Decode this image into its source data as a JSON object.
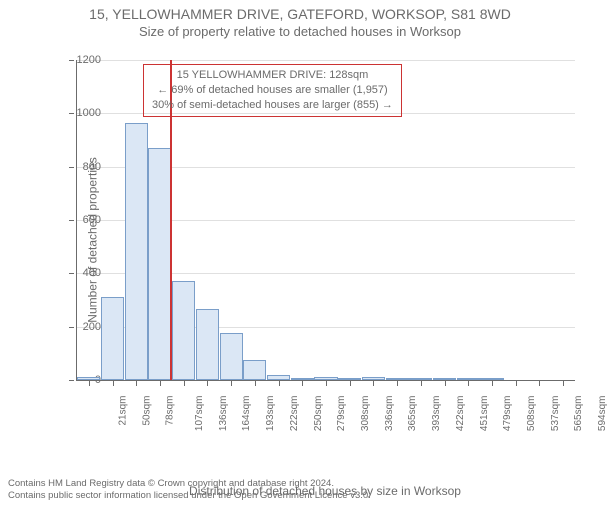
{
  "title_main": "15, YELLOWHAMMER DRIVE, GATEFORD, WORKSOP, S81 8WD",
  "title_sub": "Size of property relative to detached houses in Worksop",
  "chart": {
    "type": "histogram",
    "ylabel": "Number of detached properties",
    "xlabel": "Distribution of detached houses by size in Worksop",
    "ylim": [
      0,
      1200
    ],
    "ytick_step": 200,
    "x_categories": [
      "21sqm",
      "50sqm",
      "78sqm",
      "107sqm",
      "136sqm",
      "164sqm",
      "193sqm",
      "222sqm",
      "250sqm",
      "279sqm",
      "308sqm",
      "336sqm",
      "365sqm",
      "393sqm",
      "422sqm",
      "451sqm",
      "479sqm",
      "508sqm",
      "537sqm",
      "565sqm",
      "594sqm"
    ],
    "values": [
      10,
      310,
      965,
      870,
      370,
      265,
      175,
      75,
      18,
      8,
      12,
      6,
      10,
      2,
      4,
      2,
      8,
      2,
      0,
      0,
      0
    ],
    "bar_fill": "#dbe7f5",
    "bar_stroke": "#7a9ec9",
    "background_color": "#ffffff",
    "axis_color": "#6b6b6b",
    "grid_color": "#e0e0e0",
    "marker_value_sqm": 128,
    "marker_color": "#cc3333",
    "label_fontsize": 12,
    "tick_fontsize": 11
  },
  "info_box": {
    "line1": "15 YELLOWHAMMER DRIVE: 128sqm",
    "line2": "← 69% of detached houses are smaller (1,957)",
    "line3": "30% of semi-detached houses are larger (855) →",
    "border_color": "#cc3333"
  },
  "footer": {
    "line1": "Contains HM Land Registry data © Crown copyright and database right 2024.",
    "line2": "Contains public sector information licensed under the Open Government Licence v3.0."
  }
}
